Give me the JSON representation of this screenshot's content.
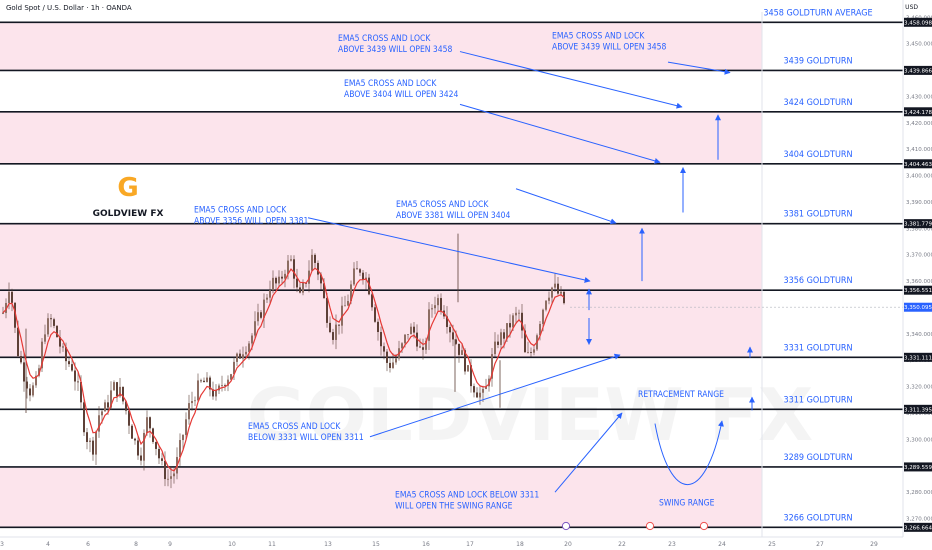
{
  "header": {
    "symbol": "Gold Spot / U.S. Dollar · 1h · OANDA",
    "currency": "USD"
  },
  "logo": {
    "letter": "G",
    "brand": "GOLDVIEW",
    "brand_suffix": "FX"
  },
  "watermark": "GOLDVIEW FX",
  "colors": {
    "band": "#fce4ec",
    "line": "#131722",
    "annotation": "#2962ff",
    "candle": "#5d4037",
    "ema": "#e53935",
    "axis_text": "#787b86"
  },
  "chart_data": {
    "type": "candlestick",
    "symbol": "Gold Spot / U.S. Dollar",
    "timeframe": "1h",
    "source": "OANDA",
    "ylim": [
      3263,
      3462
    ],
    "y_ticks": [
      3270,
      3280,
      3290,
      3300,
      3310,
      3320,
      3330,
      3340,
      3350,
      3360,
      3370,
      3380,
      3390,
      3400,
      3410,
      3420,
      3430,
      3440,
      3450,
      3460
    ],
    "x_ticks": [
      "3",
      "4",
      "6",
      "8",
      "9",
      "10",
      "11",
      "13",
      "15",
      "16",
      "17",
      "18",
      "20",
      "22",
      "23",
      "24",
      "25",
      "27",
      "29"
    ],
    "current_price": "3,350.095",
    "levels": [
      {
        "price": 3458.098,
        "label": "3,458.098",
        "name": "3458 GOLDTURN AVERAGE"
      },
      {
        "price": 3439.866,
        "label": "3,439.866",
        "name": "3439 GOLDTURN"
      },
      {
        "price": 3424.178,
        "label": "3,424.178",
        "name": "3424 GOLDTURN"
      },
      {
        "price": 3404.463,
        "label": "3,404.463",
        "name": "3404 GOLDTURN"
      },
      {
        "price": 3381.779,
        "label": "3,381.779",
        "name": "3381 GOLDTURN"
      },
      {
        "price": 3356.551,
        "label": "3,356.551",
        "name": "3356 GOLDTURN"
      },
      {
        "price": 3331.111,
        "label": "3,331.111",
        "name": "3331 GOLDTURN"
      },
      {
        "price": 3311.395,
        "label": "3,311.395",
        "name": "3311 GOLDTURN"
      },
      {
        "price": 3289.559,
        "label": "3,289.559",
        "name": "3289 GOLDTURN"
      },
      {
        "price": 3266.664,
        "label": "3,266.664",
        "name": "3266 GOLDTURN"
      }
    ],
    "shaded_bands": [
      [
        3439.866,
        3458.098
      ],
      [
        3404.463,
        3424.178
      ],
      [
        3331.111,
        3381.779
      ],
      [
        3266.664,
        3289.559
      ]
    ],
    "annotations": [
      {
        "line1": "EMA5 CROSS AND LOCK",
        "line2": "ABOVE 3439 WILL OPEN 3458"
      },
      {
        "line1": "EMA5 CROSS AND LOCK",
        "line2": "ABOVE 3439 WILL OPEN 3458"
      },
      {
        "line1": "EMA5 CROSS AND LOCK",
        "line2": "ABOVE 3404 WILL OPEN 3424"
      },
      {
        "line1": "EMA5 CROSS AND LOCK",
        "line2": "ABOVE 3381 WILL OPEN 3404"
      },
      {
        "line1": "EMA5 CROSS AND LOCK",
        "line2": "ABOVE 3356 WILL OPEN 3381"
      },
      {
        "line1": "EMA5 CROSS AND LOCK",
        "line2": "BELOW 3331 WILL OPEN 3311"
      },
      {
        "line1": "EMA5 CROSS AND LOCK BELOW 3311",
        "line2": "WILL OPEN THE SWING RANGE"
      },
      {
        "line1": "RETRACEMENT RANGE",
        "line2": ""
      },
      {
        "line1": "SWING RANGE",
        "line2": ""
      }
    ],
    "price_path": [
      3348,
      3360,
      3335,
      3325,
      3318,
      3322,
      3342,
      3345,
      3338,
      3330,
      3328,
      3318,
      3302,
      3296,
      3310,
      3312,
      3320,
      3318,
      3310,
      3300,
      3294,
      3308,
      3300,
      3290,
      3285,
      3288,
      3300,
      3312,
      3318,
      3322,
      3320,
      3316,
      3322,
      3325,
      3330,
      3335,
      3338,
      3345,
      3352,
      3360,
      3358,
      3365,
      3368,
      3352,
      3360,
      3370,
      3362,
      3348,
      3340,
      3346,
      3352,
      3362,
      3365,
      3360,
      3348,
      3335,
      3328,
      3330,
      3335,
      3342,
      3340,
      3330,
      3348,
      3354,
      3350,
      3342,
      3336,
      3330,
      3322,
      3318,
      3316,
      3330,
      3338,
      3340,
      3345,
      3348,
      3330,
      3334,
      3345,
      3355,
      3358,
      3354,
      3350
    ]
  }
}
